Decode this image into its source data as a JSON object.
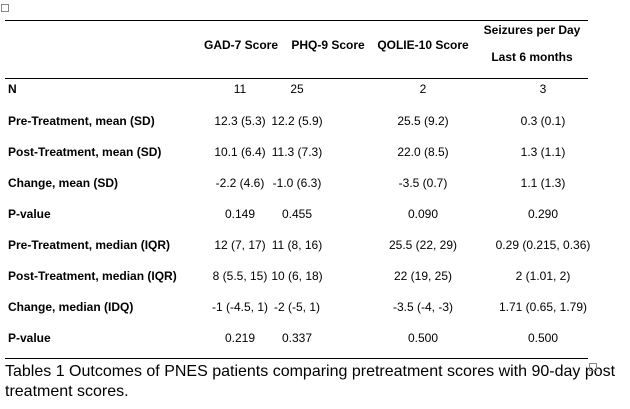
{
  "table": {
    "columns": [
      "GAD-7  Score",
      "PHQ-9  Score",
      "QOLIE-10  Score",
      [
        "Seizures per Day",
        "Last 6 months"
      ]
    ],
    "rows": [
      {
        "label": "N",
        "values": [
          "11",
          "25",
          "2",
          "3"
        ]
      },
      {
        "label": "Pre-Treatment,  mean (SD)",
        "values": [
          "12.3 (5.3)",
          "12.2 (5.9)",
          "25.5 (9.2)",
          "0.3 (0.1)"
        ]
      },
      {
        "label": "Post-Treatment,  mean (SD)",
        "values": [
          "10.1 (6.4)",
          "11.3 (7.3)",
          "22.0 (8.5)",
          "1.3 (1.1)"
        ]
      },
      {
        "label": "Change, mean (SD)",
        "values": [
          "-2.2 (4.6)",
          "-1.0 (6.3)",
          "-3.5 (0.7)",
          "1.1 (1.3)"
        ]
      },
      {
        "label": "P-value",
        "values": [
          "0.149",
          "0.455",
          "0.090",
          "0.290"
        ]
      },
      {
        "label": "Pre-Treatment,  median (IQR)",
        "values": [
          "12 (7, 17)",
          "11 (8, 16)",
          "25.5 (22, 29)",
          "0.29 (0.215, 0.36)"
        ]
      },
      {
        "label": "Post-Treatment,  median (IQR)",
        "values": [
          "8 (5.5, 15)",
          "10 (6, 18)",
          "22 (19, 25)",
          "2 (1.01, 2)"
        ]
      },
      {
        "label": "Change, median (IDQ)",
        "values": [
          "-1 (-4.5, 1)",
          "-2 (-5, 1)",
          "-3.5 (-4, -3)",
          "1.71 (0.65, 1.79)"
        ]
      },
      {
        "label": "P-value",
        "values": [
          "0.219",
          "0.337",
          "0.500",
          "0.500"
        ]
      }
    ]
  },
  "caption": "Tables 1 Outcomes of PNES patients comparing pretreatment scores with 90-day post treatment scores."
}
